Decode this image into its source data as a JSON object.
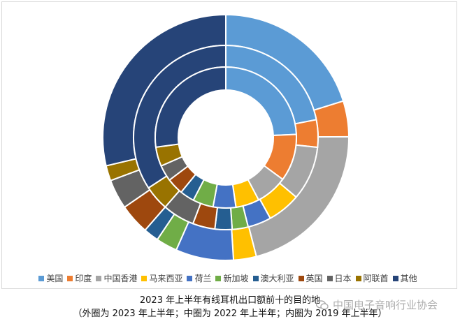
{
  "chart_data": {
    "type": "donut",
    "legend_position": "bottom",
    "labels": [
      "美国",
      "印度",
      "中国香港",
      "马来西亚",
      "荷兰",
      "新加坡",
      "澳大利亚",
      "英国",
      "日本",
      "阿联酋",
      "其他"
    ],
    "colors": [
      "#5b9bd5",
      "#ed7d31",
      "#a5a5a5",
      "#ffc000",
      "#4472c4",
      "#70ad47",
      "#255e91",
      "#9e480e",
      "#636363",
      "#997300",
      "#264478"
    ],
    "series": [
      {
        "ring": "outer",
        "values": [
          20.2,
          4.7,
          21.1,
          3.0,
          7.6,
          2.8,
          2.0,
          4.0,
          3.9,
          2.0,
          28.7
        ]
      },
      {
        "ring": "middle",
        "values": [
          21.9,
          4.8,
          9.5,
          5.8,
          4.1,
          2.8,
          3.0,
          3.9,
          5.6,
          4.4,
          34.2
        ]
      },
      {
        "ring": "inner",
        "values": [
          24.3,
          10.8,
          7.2,
          5.4,
          5.2,
          4.7,
          3.3,
          3.8,
          3.7,
          4.4,
          27.2
        ]
      }
    ]
  },
  "caption": {
    "line1": "2023 年上半年有线耳机出口额前十的目的地",
    "line2": "（外圈为 2023 年上半年；中圈为 2022 年上半年；内圈为 2019 年上半年）"
  },
  "watermark": {
    "text": "中国电子音响行业协会"
  }
}
